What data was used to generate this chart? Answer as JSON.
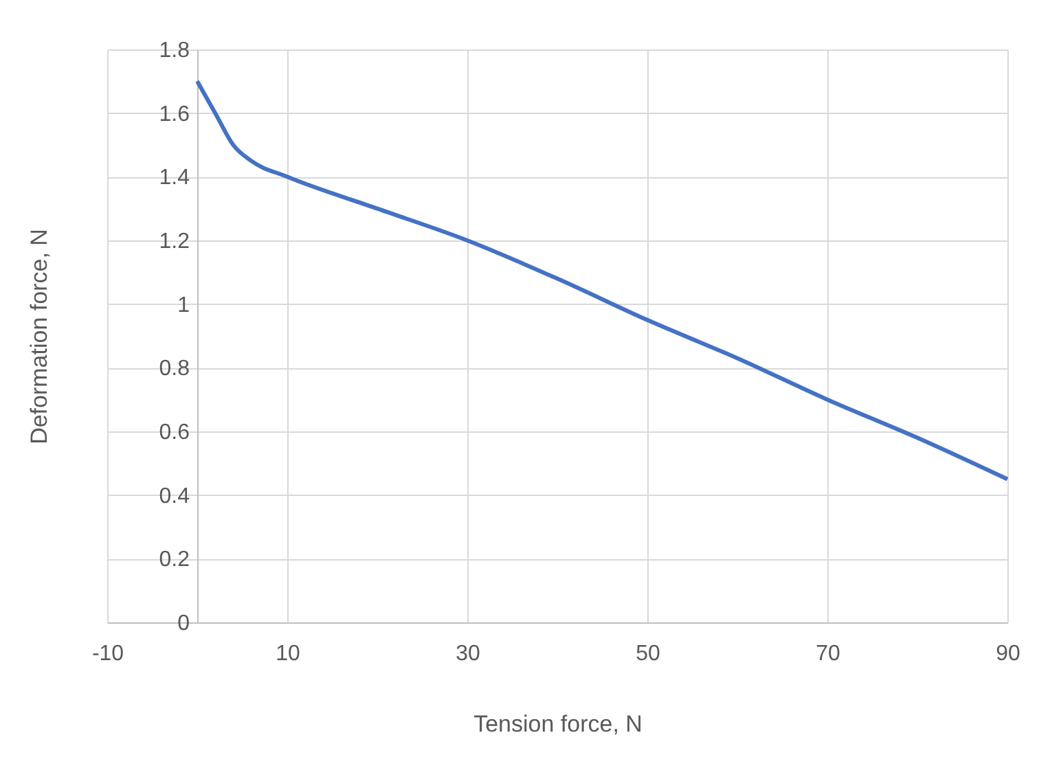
{
  "chart_data": {
    "type": "line",
    "xlabel": "Tension force, N",
    "ylabel": "Deformation force, N",
    "x": [
      0,
      2,
      4,
      6,
      10,
      20,
      30,
      40,
      50,
      60,
      70,
      80,
      90
    ],
    "series": [
      {
        "color": "#4472c4",
        "values": [
          1.7,
          1.6,
          1.5,
          1.45,
          1.4,
          1.3,
          1.2,
          1.08,
          0.95,
          0.83,
          0.7,
          0.58,
          0.45
        ]
      }
    ],
    "xlim": [
      -10,
      90
    ],
    "xticks": [
      -10,
      10,
      30,
      50,
      70,
      90
    ],
    "ylim": [
      0,
      1.8
    ],
    "yticks": [
      0,
      0.2,
      0.4,
      0.6,
      0.8,
      1,
      1.2,
      1.4,
      1.6,
      1.8
    ],
    "grid": true,
    "marker": "none",
    "line_style": "solid",
    "legend": false
  }
}
